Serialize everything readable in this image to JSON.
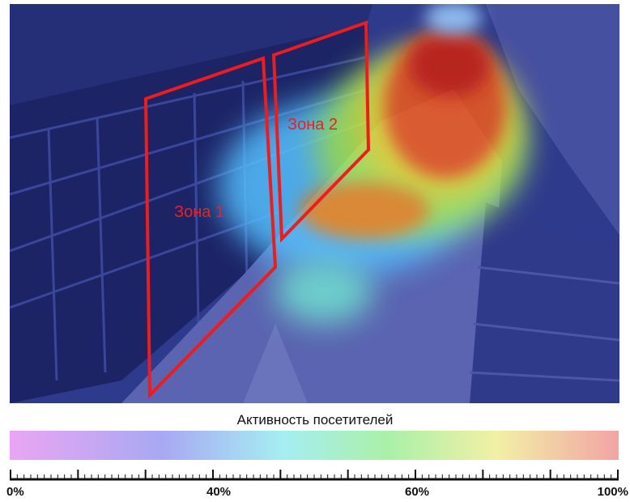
{
  "zones": [
    {
      "label": "Зона 1"
    },
    {
      "label": "Зона 2"
    }
  ],
  "legend": {
    "title": "Активность посетителей",
    "labels": [
      "0%",
      "40%",
      "60%",
      "100%"
    ]
  }
}
